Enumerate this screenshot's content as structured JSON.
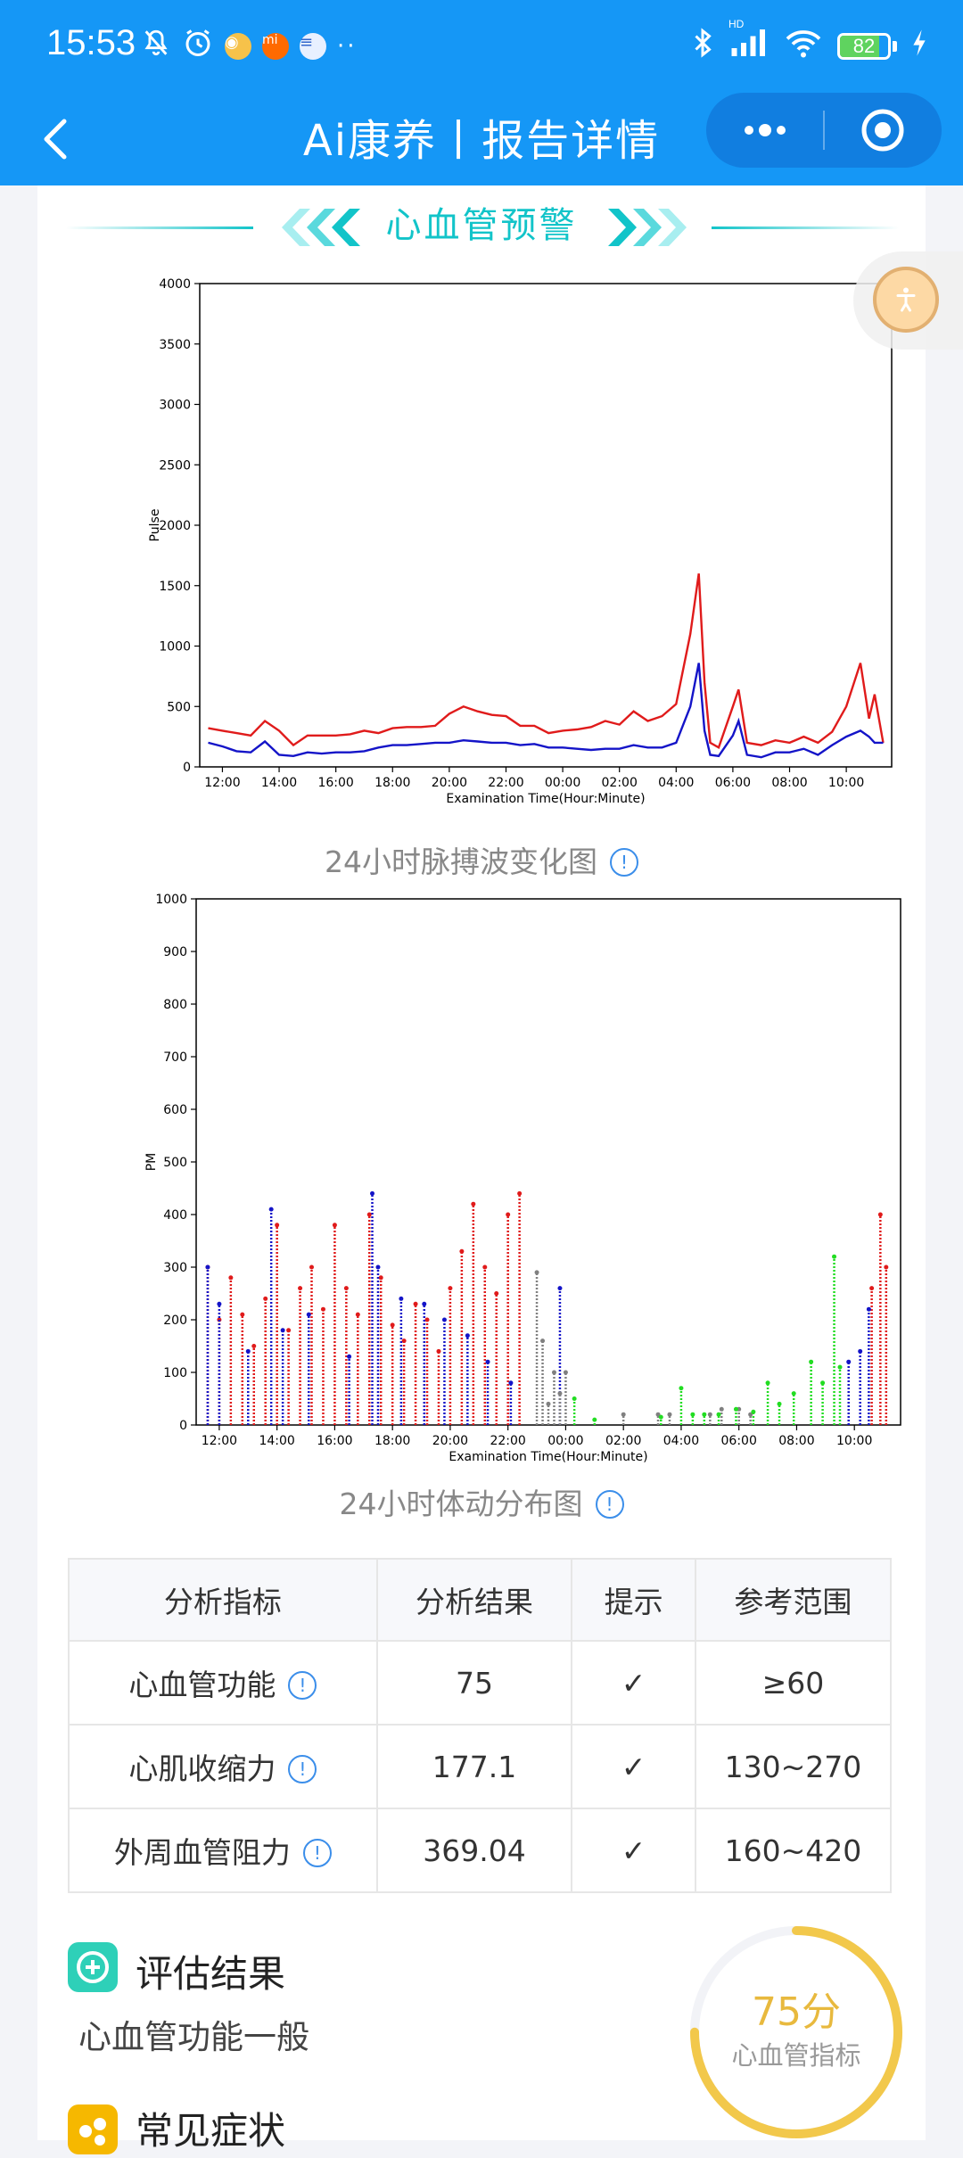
{
  "status_bar": {
    "time": "15:53",
    "battery": "82",
    "battery_level": 0.82,
    "network": "HD"
  },
  "header": {
    "title": "Ai康养丨报告详情"
  },
  "section": {
    "title": "心血管预警"
  },
  "charts": {
    "pulse_caption": "24小时脉搏波变化图",
    "pm_caption": "24小时体动分布图"
  },
  "chart_data": [
    {
      "type": "line",
      "ylabel": "Pulse",
      "xlabel": "Examination Time(Hour:Minute)",
      "ylim": [
        0,
        4000
      ],
      "yticks": [
        0,
        500,
        1000,
        1500,
        2000,
        2500,
        3000,
        3500,
        4000
      ],
      "xticks": [
        "12:00",
        "14:00",
        "16:00",
        "18:00",
        "20:00",
        "22:00",
        "00:00",
        "02:00",
        "04:00",
        "06:00",
        "08:00",
        "10:00"
      ],
      "x_hours": [
        11.5,
        12.0,
        12.5,
        13.0,
        13.5,
        14.0,
        14.5,
        15.0,
        15.5,
        16.0,
        16.5,
        17.0,
        17.5,
        18.0,
        18.5,
        19.0,
        19.5,
        20.0,
        20.5,
        21.0,
        21.5,
        22.0,
        22.5,
        23.0,
        23.5,
        24.0,
        24.5,
        25.0,
        25.5,
        26.0,
        26.5,
        27.0,
        27.5,
        28.0,
        28.5,
        28.8,
        29.0,
        29.2,
        29.5,
        30.0,
        30.2,
        30.5,
        31.0,
        31.5,
        32.0,
        32.5,
        33.0,
        33.5,
        34.0,
        34.5,
        34.8,
        35.0,
        35.3
      ],
      "series": [
        {
          "values": [
            320,
            300,
            280,
            260,
            380,
            300,
            180,
            260,
            260,
            260,
            270,
            300,
            280,
            320,
            330,
            330,
            340,
            440,
            500,
            460,
            430,
            420,
            340,
            340,
            280,
            300,
            310,
            330,
            380,
            350,
            460,
            380,
            420,
            520,
            1100,
            1600,
            700,
            200,
            160,
            500,
            640,
            200,
            180,
            220,
            200,
            250,
            200,
            290,
            500,
            860,
            400,
            600,
            200
          ]
        },
        {
          "values": [
            200,
            170,
            130,
            120,
            210,
            100,
            90,
            120,
            110,
            120,
            120,
            130,
            160,
            180,
            180,
            190,
            200,
            200,
            220,
            210,
            200,
            200,
            180,
            190,
            160,
            160,
            150,
            140,
            150,
            150,
            180,
            160,
            160,
            200,
            500,
            860,
            300,
            100,
            90,
            260,
            380,
            100,
            80,
            120,
            120,
            150,
            100,
            180,
            250,
            300,
            250,
            200,
            200
          ]
        }
      ]
    },
    {
      "type": "scatter",
      "ylabel": "PM",
      "xlabel": "Examination Time(Hour:Minute)",
      "ylim": [
        0,
        1000
      ],
      "yticks": [
        0,
        100,
        200,
        300,
        400,
        500,
        600,
        700,
        800,
        900,
        1000
      ],
      "xticks": [
        "12:00",
        "14:00",
        "16:00",
        "18:00",
        "20:00",
        "22:00",
        "00:00",
        "02:00",
        "04:00",
        "06:00",
        "08:00",
        "10:00"
      ],
      "series": [
        {
          "x_hours": [
            11.6,
            12.0,
            12.4,
            12.8,
            13.2,
            13.6,
            14.0,
            14.4,
            14.8,
            15.2,
            15.6,
            16.0,
            16.4,
            16.8,
            17.2,
            17.6,
            18.0,
            18.4,
            18.8,
            19.2,
            19.6,
            20.0,
            20.4,
            20.8,
            21.2,
            21.6,
            22.0,
            22.4,
            34.6,
            34.9,
            35.1
          ],
          "values": [
            300,
            200,
            280,
            210,
            150,
            240,
            380,
            180,
            260,
            300,
            220,
            380,
            260,
            210,
            400,
            280,
            190,
            160,
            230,
            200,
            140,
            260,
            330,
            420,
            300,
            250,
            400,
            440,
            260,
            400,
            300
          ]
        },
        {
          "x_hours": [
            11.6,
            12.0,
            13.0,
            13.8,
            14.2,
            15.1,
            16.5,
            17.3,
            17.5,
            18.3,
            19.1,
            19.8,
            20.6,
            21.3,
            22.1,
            23.8,
            33.8,
            34.2,
            34.5
          ],
          "values": [
            300,
            230,
            140,
            410,
            180,
            210,
            130,
            440,
            300,
            240,
            230,
            200,
            170,
            120,
            80,
            260,
            120,
            140,
            220
          ]
        },
        {
          "x_hours": [
            23.0,
            23.2,
            23.4,
            23.6,
            23.8,
            24.0,
            26.0,
            27.2,
            27.6,
            29.0,
            29.4,
            30.0,
            30.4
          ],
          "values": [
            290,
            160,
            40,
            100,
            60,
            100,
            20,
            20,
            20,
            20,
            30,
            30,
            20
          ]
        },
        {
          "x_hours": [
            24.3,
            25.0,
            27.3,
            28.0,
            28.4,
            28.8,
            29.3,
            29.9,
            30.5,
            31.0,
            31.4,
            31.9,
            32.5,
            32.9,
            33.3,
            33.5
          ],
          "values": [
            50,
            10,
            15,
            70,
            20,
            20,
            20,
            30,
            25,
            80,
            40,
            60,
            120,
            80,
            320,
            110
          ]
        }
      ]
    }
  ],
  "table": {
    "headers": [
      "分析指标",
      "分析结果",
      "提示",
      "参考范围"
    ],
    "rows": [
      {
        "name": "心血管功能",
        "result": "75",
        "hint": "✓",
        "range": "≥60"
      },
      {
        "name": "心肌收缩力",
        "result": "177.1",
        "hint": "✓",
        "range": "130~270"
      },
      {
        "name": "外周血管阻力",
        "result": "369.04",
        "hint": "✓",
        "range": "160~420"
      }
    ]
  },
  "assessment": {
    "title": "评估结果",
    "text": "心血管功能一般",
    "score_label": "75分",
    "score_value": 75,
    "score_sub": "心血管指标"
  },
  "symptoms": {
    "title": "常见症状"
  },
  "colors": {
    "header_blue": "#1597f6",
    "accent_teal": "#12c4c9",
    "gauge_yellow": "#f2c84b",
    "series_red": "#e01b1b",
    "series_blue": "#1414c8",
    "series_gray": "#808080",
    "series_green": "#22dd22"
  }
}
